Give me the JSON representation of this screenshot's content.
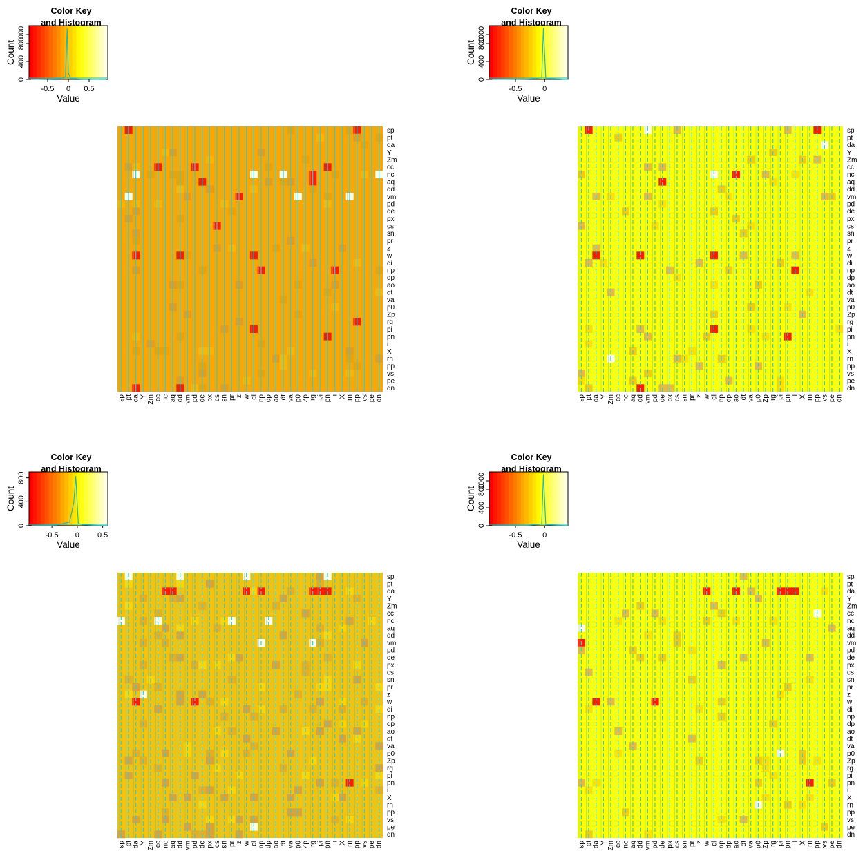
{
  "chart_data": [
    {
      "type": "heatmap",
      "title": "Color Key and Histogram",
      "key_title_lines": [
        "Color Key",
        "and Histogram"
      ],
      "key": {
        "xlabel": "Value",
        "ylabel": "Count",
        "xlim": [
          -0.95,
          0.95
        ],
        "xticks": [
          -0.5,
          0,
          0.5
        ],
        "xticklabels": [
          "-0.5",
          "0",
          "0.5"
        ],
        "ylim": [
          0,
          1200
        ],
        "yticks": [
          0,
          400,
          800,
          1000
        ],
        "yticklabels": [
          "0",
          "400",
          "800",
          "1000"
        ],
        "histogram": [
          [
            -0.9,
            0
          ],
          [
            -0.5,
            5
          ],
          [
            -0.2,
            15
          ],
          [
            -0.07,
            60
          ],
          [
            -0.03,
            1130
          ],
          [
            0.0,
            150
          ],
          [
            0.05,
            20
          ],
          [
            0.3,
            5
          ],
          [
            0.9,
            0
          ]
        ]
      },
      "labels": [
        "sp",
        "pt",
        "da",
        "Y",
        "Zm",
        "cc",
        "nc",
        "aq",
        "dd",
        "vm",
        "pd",
        "de",
        "px",
        "cs",
        "sn",
        "pr",
        "z",
        "w",
        "di",
        "np",
        "dp",
        "ao",
        "dt",
        "va",
        "p0",
        "Zp",
        "rg",
        "pi",
        "pn",
        "i",
        "X",
        "rn",
        "pp",
        "vs",
        "pe",
        "dn"
      ],
      "base": "orange",
      "density": 0.08,
      "seed": 11,
      "hot": [
        [
          0,
          1
        ],
        [
          0,
          32
        ],
        [
          5,
          5
        ],
        [
          5,
          10
        ],
        [
          5,
          28
        ],
        [
          6,
          2
        ],
        [
          6,
          18
        ],
        [
          6,
          22
        ],
        [
          6,
          26
        ],
        [
          7,
          11
        ],
        [
          7,
          26
        ],
        [
          9,
          1
        ],
        [
          9,
          16
        ],
        [
          9,
          24
        ],
        [
          13,
          13
        ],
        [
          17,
          2
        ],
        [
          17,
          8
        ],
        [
          17,
          18
        ],
        [
          19,
          19
        ],
        [
          19,
          29
        ],
        [
          26,
          32
        ],
        [
          27,
          18
        ],
        [
          28,
          28
        ],
        [
          35,
          2
        ],
        [
          35,
          8
        ]
      ],
      "white": [
        [
          6,
          2
        ],
        [
          6,
          18
        ],
        [
          6,
          22
        ],
        [
          6,
          35
        ],
        [
          9,
          1
        ],
        [
          9,
          24
        ],
        [
          9,
          31
        ]
      ]
    },
    {
      "type": "heatmap",
      "title": "Color Key and Histogram",
      "key_title_lines": [
        "Color Key",
        "and Histogram"
      ],
      "key": {
        "xlabel": "Value",
        "ylabel": "Count",
        "xlim": [
          -0.95,
          0.4
        ],
        "xticks": [
          -0.5,
          0
        ],
        "xticklabels": [
          "-0.5",
          "0"
        ],
        "ylim": [
          0,
          1200
        ],
        "yticks": [
          0,
          400,
          800,
          1000
        ],
        "yticklabels": [
          "0",
          "400",
          "800",
          "1000"
        ],
        "histogram": [
          [
            -0.9,
            0
          ],
          [
            -0.3,
            5
          ],
          [
            -0.05,
            30
          ],
          [
            -0.02,
            1150
          ],
          [
            0.02,
            20
          ],
          [
            0.4,
            0
          ]
        ]
      },
      "labels": [
        "sp",
        "pt",
        "da",
        "Y",
        "Zm",
        "cc",
        "nc",
        "aq",
        "dd",
        "vm",
        "pd",
        "de",
        "px",
        "cs",
        "sn",
        "pr",
        "z",
        "w",
        "di",
        "np",
        "dp",
        "ao",
        "dt",
        "va",
        "p0",
        "Zp",
        "rg",
        "pi",
        "pn",
        "i",
        "X",
        "rn",
        "pp",
        "vs",
        "pe",
        "dn"
      ],
      "base": "yellow",
      "density": 0.06,
      "seed": 23,
      "hot": [
        [
          0,
          1
        ],
        [
          0,
          32
        ],
        [
          6,
          21
        ],
        [
          7,
          11
        ],
        [
          17,
          2
        ],
        [
          17,
          8
        ],
        [
          17,
          18
        ],
        [
          19,
          29
        ],
        [
          27,
          18
        ],
        [
          28,
          28
        ],
        [
          35,
          8
        ]
      ],
      "white": [
        [
          0,
          9
        ],
        [
          2,
          33
        ],
        [
          6,
          18
        ],
        [
          31,
          4
        ]
      ]
    },
    {
      "type": "heatmap",
      "title": "Color Key and Histogram",
      "key_title_lines": [
        "Color Key",
        "and Histogram"
      ],
      "key": {
        "xlabel": "Value",
        "ylabel": "Count",
        "xlim": [
          -0.95,
          0.6
        ],
        "xticks": [
          -0.5,
          0,
          0.5
        ],
        "xticklabels": [
          "-0.5",
          "0",
          "0.5"
        ],
        "ylim": [
          0,
          900
        ],
        "yticks": [
          0,
          400,
          800
        ],
        "yticklabels": [
          "0",
          "400",
          "800"
        ],
        "histogram": [
          [
            -0.9,
            0
          ],
          [
            -0.4,
            10
          ],
          [
            -0.15,
            60
          ],
          [
            -0.07,
            380
          ],
          [
            -0.03,
            830
          ],
          [
            0.02,
            40
          ],
          [
            0.1,
            15
          ],
          [
            0.4,
            5
          ],
          [
            0.6,
            0
          ]
        ]
      },
      "labels": [
        "sp",
        "pt",
        "da",
        "Y",
        "Zm",
        "cc",
        "nc",
        "aq",
        "dd",
        "vm",
        "pd",
        "de",
        "px",
        "cs",
        "sn",
        "pr",
        "z",
        "w",
        "di",
        "np",
        "dp",
        "ao",
        "dt",
        "va",
        "p0",
        "Zp",
        "rg",
        "pi",
        "pn",
        "i",
        "X",
        "rn",
        "pp",
        "vs",
        "pe",
        "dn"
      ],
      "base": "gold",
      "density": 0.12,
      "seed": 37,
      "hot": [
        [
          2,
          6
        ],
        [
          2,
          7
        ],
        [
          2,
          17
        ],
        [
          2,
          19
        ],
        [
          2,
          26
        ],
        [
          2,
          27
        ],
        [
          2,
          28
        ],
        [
          17,
          2
        ],
        [
          17,
          10
        ],
        [
          28,
          31
        ]
      ],
      "white": [
        [
          0,
          1
        ],
        [
          0,
          8
        ],
        [
          0,
          17
        ],
        [
          0,
          28
        ],
        [
          6,
          0
        ],
        [
          6,
          5
        ],
        [
          6,
          15
        ],
        [
          6,
          20
        ],
        [
          9,
          19
        ],
        [
          9,
          26
        ],
        [
          16,
          3
        ],
        [
          34,
          18
        ]
      ]
    },
    {
      "type": "heatmap",
      "title": "Color Key and Histogram",
      "key_title_lines": [
        "Color Key",
        "and Histogram"
      ],
      "key": {
        "xlabel": "Value",
        "ylabel": "Count",
        "xlim": [
          -0.95,
          0.4
        ],
        "xticks": [
          -0.5,
          0
        ],
        "xticklabels": [
          "-0.5",
          "0"
        ],
        "ylim": [
          0,
          1200
        ],
        "yticks": [
          0,
          400,
          800,
          1000
        ],
        "yticklabels": [
          "0",
          "400",
          "800",
          "1000"
        ],
        "histogram": [
          [
            -0.9,
            0
          ],
          [
            -0.3,
            5
          ],
          [
            -0.05,
            30
          ],
          [
            -0.02,
            1150
          ],
          [
            0.02,
            20
          ],
          [
            0.4,
            0
          ]
        ]
      },
      "labels": [
        "sp",
        "pt",
        "da",
        "Y",
        "Zm",
        "cc",
        "nc",
        "aq",
        "dd",
        "vm",
        "pd",
        "de",
        "px",
        "cs",
        "sn",
        "pr",
        "z",
        "w",
        "di",
        "np",
        "dp",
        "ao",
        "dt",
        "va",
        "p0",
        "Zp",
        "rg",
        "pi",
        "pn",
        "i",
        "X",
        "rn",
        "pp",
        "vs",
        "pe",
        "dn"
      ],
      "base": "yellow",
      "density": 0.05,
      "seed": 51,
      "hot": [
        [
          2,
          17
        ],
        [
          2,
          21
        ],
        [
          2,
          28
        ],
        [
          2,
          29
        ],
        [
          2,
          27
        ],
        [
          9,
          0
        ],
        [
          17,
          2
        ],
        [
          17,
          10
        ],
        [
          28,
          31
        ]
      ],
      "white": [
        [
          7,
          0
        ],
        [
          24,
          27
        ],
        [
          31,
          24
        ],
        [
          5,
          32
        ]
      ]
    }
  ]
}
